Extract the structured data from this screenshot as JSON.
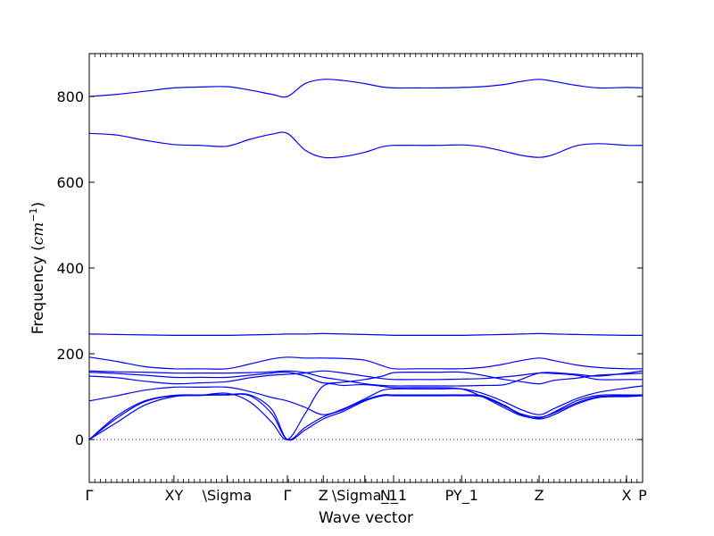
{
  "chart_data": {
    "type": "line",
    "title": "",
    "xlabel": "Wave vector",
    "ylabel_text": "Frequency (",
    "ylabel_unit": "cm",
    "ylabel_exponent": "−1",
    "ylabel_close": ")",
    "ylim": [
      -100,
      900
    ],
    "xlim": [
      0,
      100
    ],
    "grid": false,
    "legend": "none",
    "colors": {
      "series": "#0000ff",
      "zero_line": "#0000ff"
    },
    "y_ticks": [
      0,
      200,
      400,
      600,
      800
    ],
    "x_ticks": [
      {
        "label": "Γ",
        "x": 0
      },
      {
        "label": "XY",
        "x": 15.3
      },
      {
        "label": "\\Sigma",
        "x": 24.9
      },
      {
        "label": "Γ",
        "x": 35.8
      },
      {
        "label": "Z",
        "x": 42.3
      },
      {
        "label": "\\Sigma_1",
        "x": 49.8
      },
      {
        "label": "N_1",
        "x": 55.0
      },
      {
        "label": "PY_1",
        "x": 67.3
      },
      {
        "label": "Z",
        "x": 81.3
      },
      {
        "label": "X",
        "x": 97.1
      },
      {
        "label": "P",
        "x": 100
      }
    ],
    "x": [
      0,
      5,
      10,
      15.3,
      20,
      24.9,
      29,
      33,
      35.8,
      39,
      42.3,
      46,
      49.8,
      53,
      55,
      59,
      63,
      67.3,
      71,
      75,
      78,
      81.3,
      84,
      88,
      92,
      97.1,
      100
    ],
    "series": [
      {
        "values": [
          800,
          805,
          812,
          820,
          822,
          823,
          815,
          805,
          800,
          830,
          840,
          837,
          830,
          822,
          820,
          820,
          820,
          821,
          823,
          828,
          835,
          840,
          835,
          826,
          820,
          821,
          820
        ]
      },
      {
        "values": [
          714,
          710,
          698,
          688,
          686,
          684,
          700,
          712,
          714,
          675,
          658,
          660,
          670,
          683,
          686,
          686,
          686,
          687,
          683,
          672,
          663,
          658,
          665,
          685,
          690,
          686,
          686
        ]
      },
      {
        "values": [
          246,
          245,
          244,
          243,
          243,
          243,
          244,
          245,
          246,
          246,
          247,
          246,
          245,
          244,
          243,
          243,
          243,
          243,
          244,
          245,
          246,
          247,
          246,
          245,
          244,
          243,
          243
        ]
      },
      {
        "values": [
          192,
          182,
          170,
          165,
          165,
          165,
          176,
          188,
          192,
          190,
          190,
          189,
          185,
          172,
          165,
          165,
          165,
          165,
          168,
          176,
          184,
          190,
          184,
          174,
          168,
          165,
          165
        ]
      },
      {
        "values": [
          160,
          158,
          157,
          155,
          155,
          155,
          156,
          158,
          160,
          156,
          145,
          138,
          130,
          126,
          125,
          125,
          125,
          125,
          126,
          128,
          140,
          155,
          156,
          152,
          148,
          155,
          160
        ]
      },
      {
        "values": [
          157,
          154,
          150,
          145,
          145,
          145,
          150,
          155,
          157,
          148,
          132,
          134,
          140,
          148,
          156,
          157,
          157,
          157,
          150,
          140,
          135,
          130,
          138,
          143,
          150,
          153,
          155
        ]
      },
      {
        "values": [
          148,
          144,
          136,
          130,
          132,
          135,
          144,
          150,
          152,
          155,
          160,
          155,
          148,
          142,
          140,
          140,
          140,
          141,
          142,
          146,
          150,
          155,
          154,
          150,
          140,
          140,
          140
        ]
      },
      {
        "values": [
          90,
          102,
          115,
          122,
          122,
          122,
          112,
          98,
          90,
          75,
          58,
          72,
          95,
          115,
          118,
          118,
          118,
          118,
          108,
          88,
          70,
          58,
          72,
          95,
          110,
          120,
          125
        ]
      },
      {
        "values": [
          0,
          40,
          80,
          100,
          103,
          108,
          88,
          40,
          0,
          60,
          125,
          126,
          128,
          124,
          121,
          121,
          121,
          118,
          100,
          74,
          56,
          50,
          64,
          90,
          103,
          104,
          104
        ]
      },
      {
        "values": [
          0,
          50,
          88,
          102,
          103,
          104,
          102,
          60,
          0,
          28,
          53,
          70,
          92,
          104,
          104,
          104,
          104,
          104,
          102,
          80,
          60,
          52,
          62,
          85,
          100,
          102,
          103
        ]
      },
      {
        "values": [
          0,
          55,
          90,
          103,
          104,
          105,
          104,
          70,
          0,
          22,
          48,
          66,
          90,
          102,
          102,
          102,
          102,
          102,
          100,
          78,
          58,
          48,
          58,
          82,
          98,
          100,
          102
        ]
      }
    ]
  }
}
